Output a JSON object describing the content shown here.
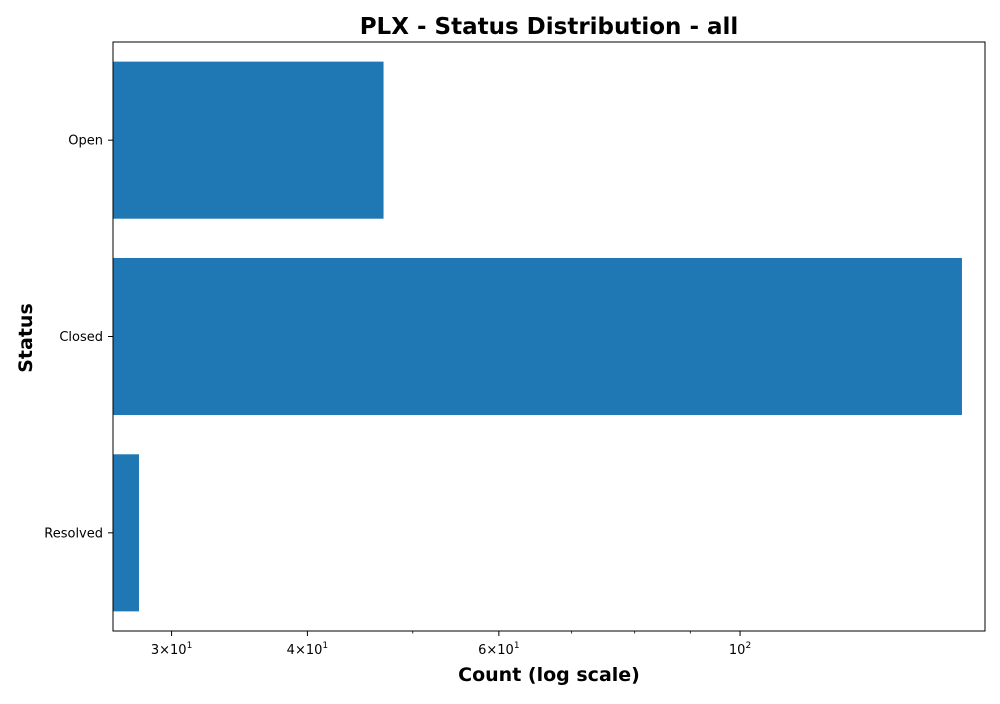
{
  "chart_data": {
    "type": "bar",
    "orientation": "horizontal",
    "title": "PLX - Status Distribution - all",
    "xlabel": "Count (log scale)",
    "ylabel": "Status",
    "x_scale": "log",
    "xlim": [
      26.5,
      168
    ],
    "x_ticks": [
      {
        "value": 30,
        "base": "3×10",
        "exp": "1"
      },
      {
        "value": 40,
        "base": "4×10",
        "exp": "1"
      },
      {
        "value": 60,
        "base": "6×10",
        "exp": "1"
      },
      {
        "value": 100,
        "base": "10",
        "exp": "2"
      }
    ],
    "x_minor_ticks": [
      50,
      70,
      80,
      90
    ],
    "categories": [
      "Open",
      "Closed",
      "Resolved"
    ],
    "values": [
      47,
      160,
      28
    ],
    "bar_color": "#1f77b4",
    "grid": false,
    "legend": "none"
  }
}
